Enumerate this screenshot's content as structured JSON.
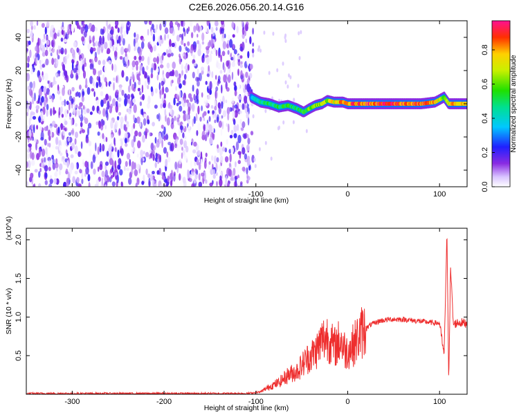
{
  "title": "C2E6.2026.056.20.14.G16",
  "colors": {
    "snr_line": "#ee2d2d",
    "background": "#ffffff",
    "axis": "#000000"
  },
  "chart_data": [
    {
      "type": "heatmap",
      "title": "C2E6.2026.056.20.14.G16",
      "xlabel": "Height of straight line (km)",
      "ylabel": "Frequency (Hz)",
      "xlim": [
        -350,
        130
      ],
      "ylim": [
        -50,
        50
      ],
      "xticks": [
        "-300",
        "-200",
        "-100",
        "0",
        "100"
      ],
      "yticks": [
        "-40",
        "-20",
        "0",
        "20",
        "40"
      ],
      "colorbar": {
        "label": "Normalized spectral amplitude",
        "range": [
          0,
          0.97
        ],
        "ticks": [
          "0.0",
          "0.2",
          "0.4",
          "0.6",
          "0.8"
        ],
        "colormap": "rainbow (white-violet-blue-cyan-green-yellow-red-magenta)"
      },
      "ridge": {
        "x": [
          -105,
          -95,
          -85,
          -75,
          -65,
          -55,
          -48,
          -42,
          -35,
          -28,
          -22,
          -15,
          -5,
          0,
          20,
          40,
          60,
          80,
          95,
          105,
          110,
          120,
          130
        ],
        "frequency": [
          4,
          1,
          0,
          -2,
          -1,
          -3,
          -5,
          -3,
          -1,
          0,
          2,
          1,
          1,
          0,
          0,
          0,
          0,
          0,
          1,
          4,
          0,
          0,
          0
        ],
        "amplitude": [
          0.35,
          0.45,
          0.5,
          0.5,
          0.55,
          0.5,
          0.55,
          0.6,
          0.65,
          0.7,
          0.65,
          0.75,
          0.8,
          0.85,
          0.9,
          0.95,
          0.9,
          0.85,
          0.8,
          0.6,
          0.75,
          0.8,
          0.75
        ]
      },
      "noise_region_x": [
        -350,
        -103
      ]
    },
    {
      "type": "line",
      "xlabel": "Height of straight line (km)",
      "ylabel": "SNR (10 * v/v)",
      "y_multiplier": "(x10^4)",
      "xlim": [
        -350,
        130
      ],
      "ylim": [
        0,
        2.15
      ],
      "xticks": [
        "-300",
        "-200",
        "-100",
        "0",
        "100"
      ],
      "yticks": [
        "0.5",
        "1.0",
        "1.5",
        "2.0"
      ],
      "series": [
        {
          "x": [
            -350,
            -300,
            -250,
            -200,
            -150,
            -110,
            -95,
            -85,
            -75,
            -65,
            -55,
            -45,
            -35,
            -28,
            -22,
            -15,
            -8,
            -2,
            5,
            15,
            25,
            35,
            45,
            60,
            75,
            90,
            100,
            105,
            108,
            110,
            112,
            115,
            120,
            130
          ],
          "y": [
            0.01,
            0.01,
            0.01,
            0.01,
            0.01,
            0.01,
            0.03,
            0.1,
            0.15,
            0.25,
            0.3,
            0.45,
            0.55,
            0.7,
            0.75,
            0.6,
            0.7,
            0.55,
            0.62,
            0.8,
            0.9,
            0.95,
            0.97,
            0.97,
            0.95,
            0.93,
            0.92,
            0.5,
            2.1,
            0.2,
            1.65,
            0.9,
            0.93,
            0.92
          ]
        }
      ]
    }
  ]
}
